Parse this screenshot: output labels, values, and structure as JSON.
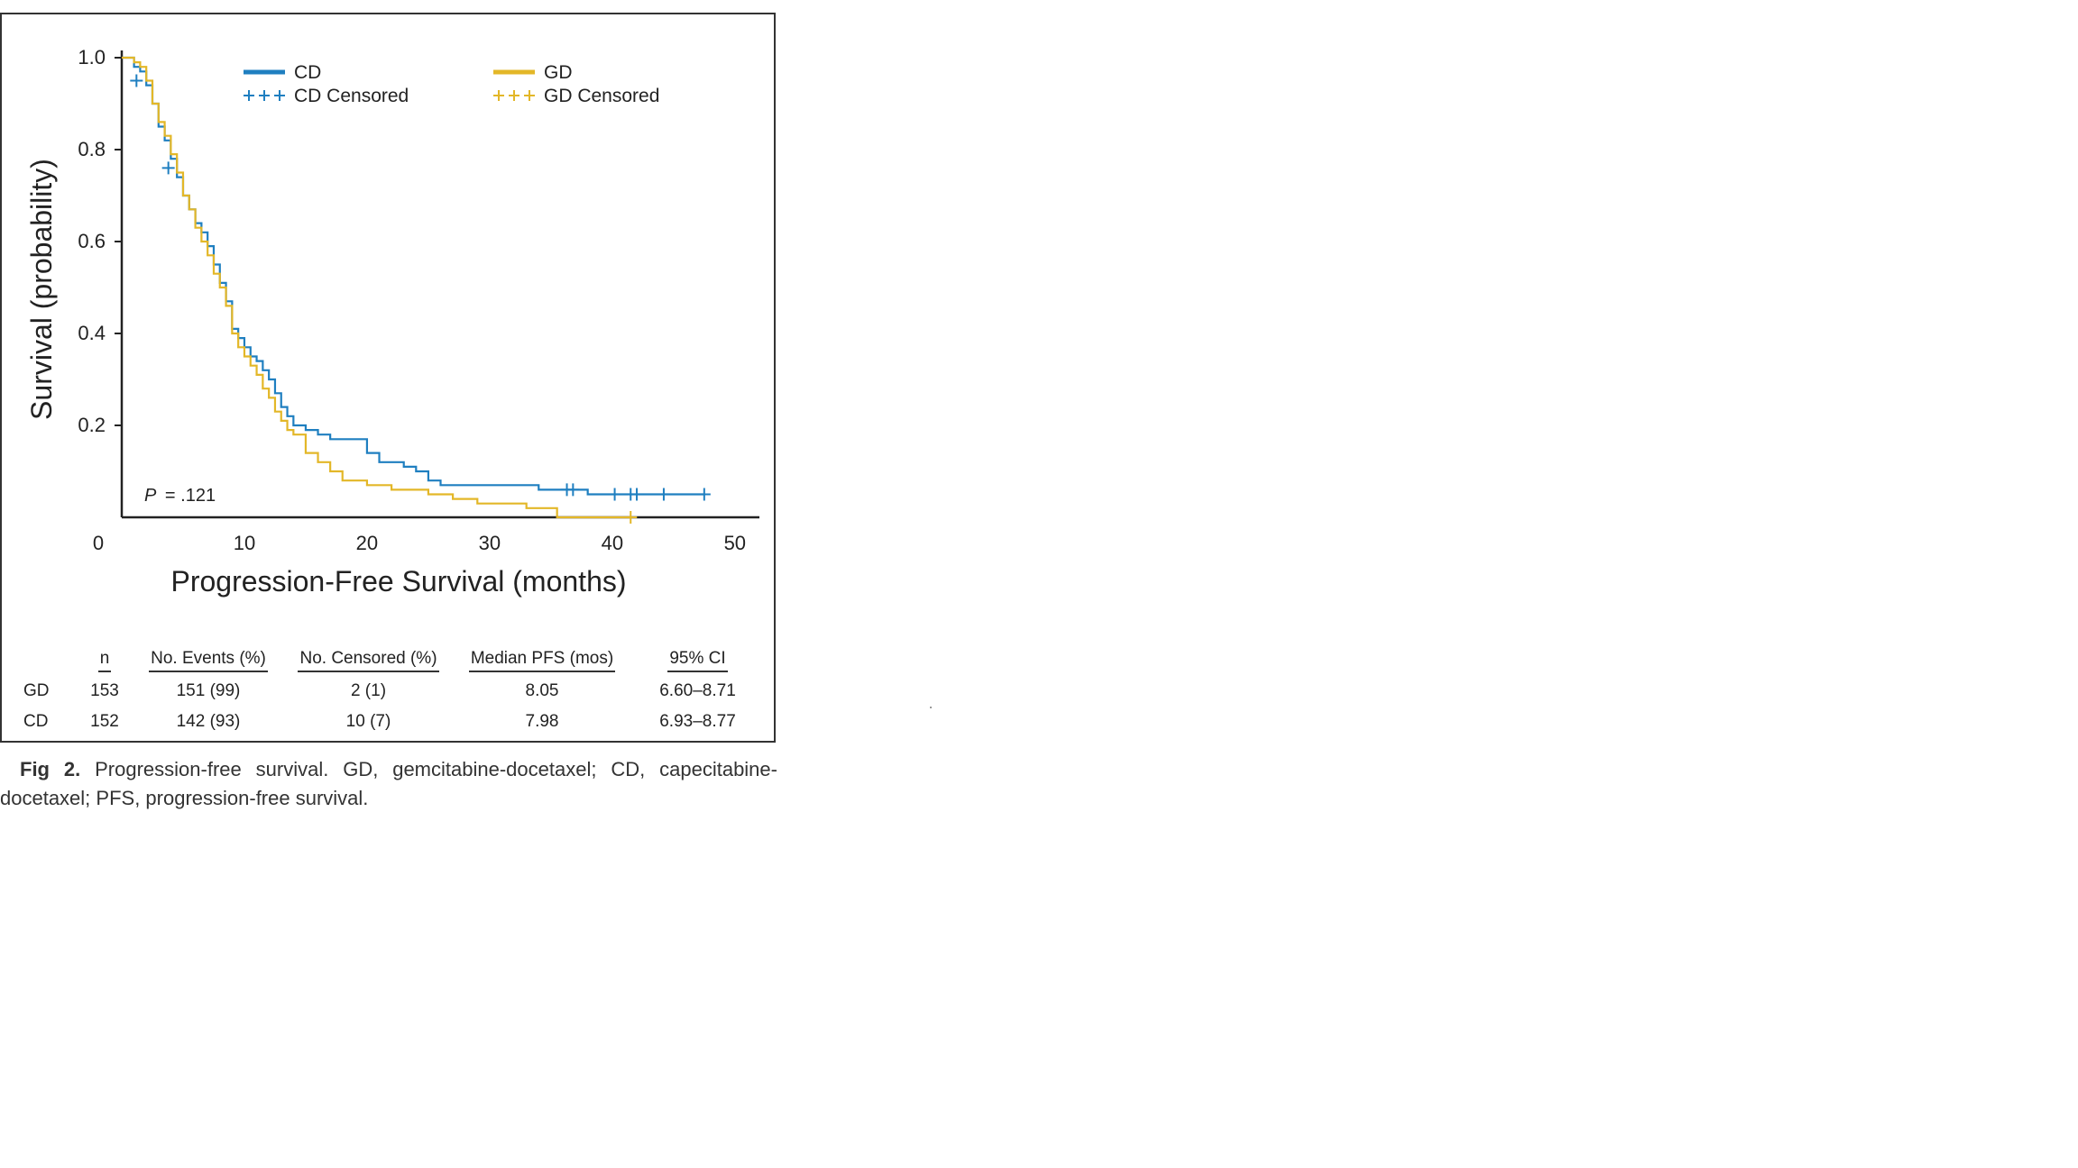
{
  "chart_data": {
    "type": "line",
    "subtype": "kaplan-meier",
    "xlabel": "Progression-Free Survival (months)",
    "ylabel": "Survival (probability)",
    "xlim": [
      0,
      52
    ],
    "ylim": [
      0,
      1.0
    ],
    "x_ticks": [
      0,
      10,
      20,
      30,
      40,
      50
    ],
    "y_ticks": [
      0.2,
      0.4,
      0.6,
      0.8,
      1.0
    ],
    "y_tick_labels": [
      "0.2",
      "0.4",
      "0.6",
      "0.8",
      "1.0"
    ],
    "x_tick_labels": [
      "0",
      "10",
      "20",
      "30",
      "40",
      "50"
    ],
    "grid": false,
    "legend_position": "top",
    "annotation": {
      "p_label": "P",
      "p_value": "= .121"
    },
    "legend": [
      {
        "label": "CD",
        "kind": "line",
        "color": "#1f7fc0"
      },
      {
        "label": "GD",
        "kind": "line",
        "color": "#e3b728"
      },
      {
        "label": "CD Censored",
        "kind": "censor",
        "color": "#1f7fc0"
      },
      {
        "label": "GD Censored",
        "kind": "censor",
        "color": "#e3b728"
      }
    ],
    "series": [
      {
        "name": "CD",
        "color": "#1f7fc0",
        "x": [
          0,
          1.0,
          1.5,
          2.0,
          2.5,
          3.0,
          3.5,
          4.0,
          4.5,
          5.0,
          5.5,
          6.0,
          6.5,
          7.0,
          7.5,
          8.0,
          8.5,
          9.0,
          9.5,
          10.0,
          10.5,
          11.0,
          11.5,
          12.0,
          12.5,
          13.0,
          13.5,
          14.0,
          15.0,
          16.0,
          17.0,
          18.0,
          19.0,
          20.0,
          21.0,
          22.0,
          23.0,
          24.0,
          25.0,
          26.0,
          28.0,
          30.0,
          32.0,
          34.0,
          36.0,
          38.0,
          40.0,
          42.0,
          44.0,
          47.5
        ],
        "y": [
          1.0,
          0.98,
          0.97,
          0.94,
          0.9,
          0.85,
          0.82,
          0.78,
          0.74,
          0.7,
          0.67,
          0.64,
          0.62,
          0.59,
          0.55,
          0.51,
          0.47,
          0.41,
          0.39,
          0.37,
          0.35,
          0.34,
          0.32,
          0.3,
          0.27,
          0.24,
          0.22,
          0.2,
          0.19,
          0.18,
          0.17,
          0.17,
          0.17,
          0.14,
          0.12,
          0.12,
          0.11,
          0.1,
          0.08,
          0.07,
          0.07,
          0.07,
          0.07,
          0.06,
          0.06,
          0.05,
          0.05,
          0.05,
          0.05,
          0.05
        ],
        "censored_x": [
          1.2,
          3.8,
          36.3,
          36.8,
          40.2,
          41.5,
          42.0,
          44.2,
          47.5
        ],
        "censored_y": [
          0.95,
          0.76,
          0.06,
          0.06,
          0.05,
          0.05,
          0.05,
          0.05,
          0.05
        ]
      },
      {
        "name": "GD",
        "color": "#e3b728",
        "x": [
          0,
          1.0,
          1.5,
          2.0,
          2.5,
          3.0,
          3.5,
          4.0,
          4.5,
          5.0,
          5.5,
          6.0,
          6.5,
          7.0,
          7.5,
          8.0,
          8.5,
          9.0,
          9.5,
          10.0,
          10.5,
          11.0,
          11.5,
          12.0,
          12.5,
          13.0,
          13.5,
          14.0,
          15.0,
          16.0,
          17.0,
          18.0,
          20.0,
          22.0,
          25.0,
          27.0,
          29.0,
          31.0,
          33.0,
          34.5,
          35.5,
          38.0,
          41.5
        ],
        "y": [
          1.0,
          0.99,
          0.98,
          0.95,
          0.9,
          0.86,
          0.83,
          0.79,
          0.75,
          0.7,
          0.67,
          0.63,
          0.6,
          0.57,
          0.53,
          0.5,
          0.46,
          0.4,
          0.37,
          0.35,
          0.33,
          0.31,
          0.28,
          0.26,
          0.23,
          0.21,
          0.19,
          0.18,
          0.14,
          0.12,
          0.1,
          0.08,
          0.07,
          0.06,
          0.05,
          0.04,
          0.03,
          0.03,
          0.02,
          0.02,
          0.0,
          0.0,
          0.0
        ],
        "censored_x": [
          41.5
        ],
        "censored_y": [
          0.0
        ]
      }
    ]
  },
  "table": {
    "headers": [
      "",
      "n",
      "No. Events (%)",
      "No. Censored (%)",
      "Median PFS (mos)",
      "95% CI"
    ],
    "rows": [
      [
        "GD",
        "153",
        "151 (99)",
        "2 (1)",
        "8.05",
        "6.60–8.71"
      ],
      [
        "CD",
        "152",
        "142 (93)",
        "10 (7)",
        "7.98",
        "6.93–8.77"
      ]
    ]
  },
  "caption": {
    "label": "Fig 2.",
    "text": "Progression-free survival. GD, gemcitabine-docetaxel; CD, capecitabine-docetaxel; PFS, progression-free survival."
  }
}
